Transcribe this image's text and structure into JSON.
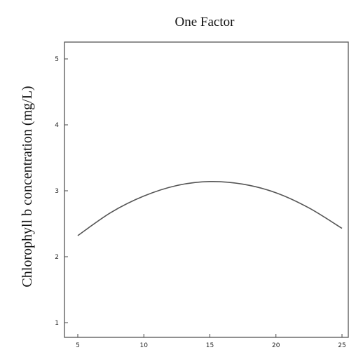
{
  "chart_data": {
    "type": "line",
    "title": "One Factor",
    "xlabel": "",
    "ylabel": "Chlorophyll b  concentration (mg/L)",
    "xlim": [
      5,
      25
    ],
    "ylim": [
      1,
      5
    ],
    "xticks": [
      5,
      10,
      15,
      20,
      25
    ],
    "yticks": [
      1,
      2,
      3,
      4,
      5
    ],
    "grid": false,
    "series": [
      {
        "name": "",
        "x": [
          5,
          7.5,
          10,
          12.5,
          15,
          17.5,
          20,
          22.5,
          25
        ],
        "y": [
          2.32,
          2.67,
          2.92,
          3.08,
          3.14,
          3.1,
          2.97,
          2.74,
          2.43
        ]
      }
    ],
    "colors": {
      "curve": "#555555",
      "frame": "#555555"
    }
  }
}
